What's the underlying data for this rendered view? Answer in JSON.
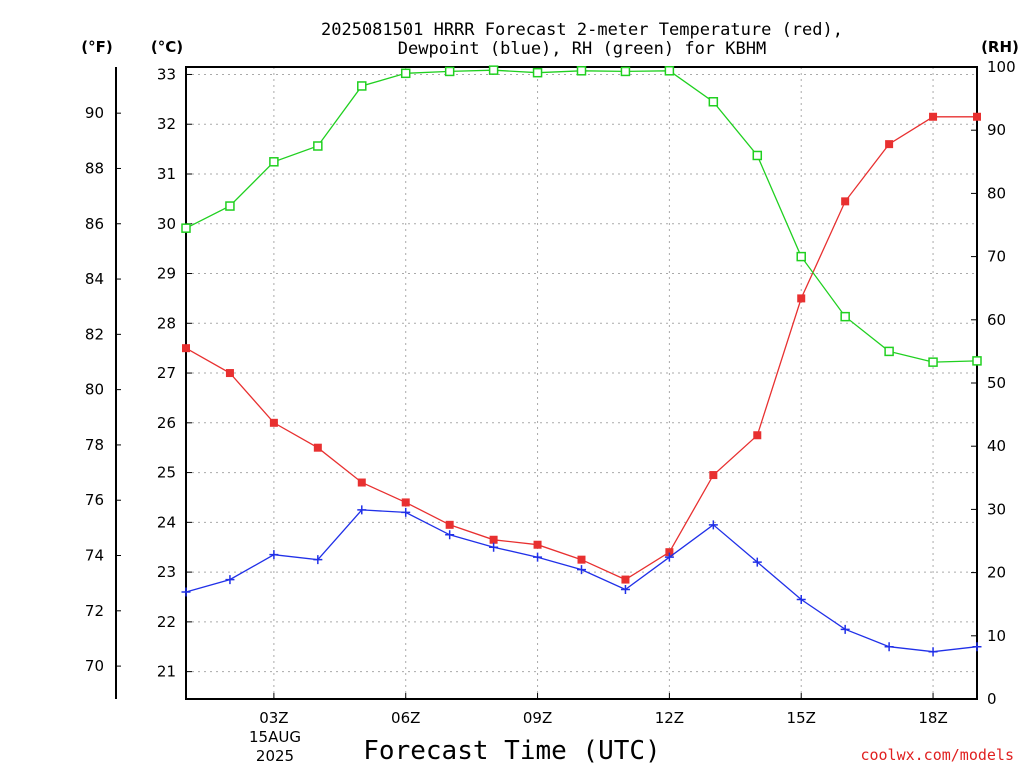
{
  "chart_data": {
    "type": "line",
    "title": "2025081501 HRRR Forecast 2-meter Temperature (red),",
    "subtitle": "Dewpoint (blue), RH (green) for KBHM",
    "xlabel": "Forecast Time (UTC)",
    "credit": "coolwx.com/models",
    "units": {
      "fahrenheit": "(°F)",
      "celsius": "(°C)",
      "rh": "(RH)"
    },
    "x": [
      1,
      2,
      3,
      4,
      5,
      6,
      7,
      8,
      9,
      10,
      11,
      12,
      13,
      14,
      15,
      16,
      17,
      18,
      19
    ],
    "xlim": [
      1,
      19
    ],
    "xticks": [
      {
        "x": 3,
        "label": "03Z"
      },
      {
        "x": 6,
        "label": "06Z"
      },
      {
        "x": 9,
        "label": "09Z"
      },
      {
        "x": 12,
        "label": "12Z"
      },
      {
        "x": 15,
        "label": "15Z"
      },
      {
        "x": 18,
        "label": "18Z"
      }
    ],
    "date_lines": [
      "15AUG",
      "2025"
    ],
    "celsius_axis": {
      "lim": [
        20.45,
        33.15
      ],
      "ticks": [
        21,
        22,
        23,
        24,
        25,
        26,
        27,
        28,
        29,
        30,
        31,
        32,
        33
      ]
    },
    "fahrenheit_axis": {
      "lim": [
        68.81,
        91.67
      ],
      "ticks": [
        70,
        72,
        74,
        76,
        78,
        80,
        82,
        84,
        86,
        88,
        90
      ]
    },
    "rh_axis": {
      "lim": [
        0,
        100
      ],
      "ticks": [
        0,
        10,
        20,
        30,
        40,
        50,
        60,
        70,
        80,
        90,
        100
      ]
    },
    "grid": true,
    "series": [
      {
        "color": "#e83030",
        "marker": "filled-square",
        "axis": "celsius",
        "values": [
          27.5,
          27.0,
          26.0,
          25.5,
          24.8,
          24.4,
          23.95,
          23.65,
          23.55,
          23.25,
          22.85,
          23.4,
          24.95,
          25.75,
          28.5,
          30.45,
          31.6,
          32.15,
          32.15
        ]
      },
      {
        "color": "#2030e8",
        "marker": "plus",
        "axis": "celsius",
        "values": [
          22.6,
          22.85,
          23.35,
          23.25,
          24.25,
          24.2,
          23.75,
          23.5,
          23.3,
          23.05,
          22.65,
          23.3,
          23.95,
          23.2,
          22.45,
          21.85,
          21.5,
          21.4,
          21.5
        ]
      },
      {
        "color": "#20d020",
        "marker": "open-square",
        "axis": "rh",
        "values": [
          74.5,
          78,
          85,
          87.5,
          97,
          99,
          99.3,
          99.5,
          99.1,
          99.4,
          99.3,
          99.4,
          94.5,
          86,
          70,
          60.5,
          55,
          53.3,
          53.5
        ]
      }
    ]
  }
}
